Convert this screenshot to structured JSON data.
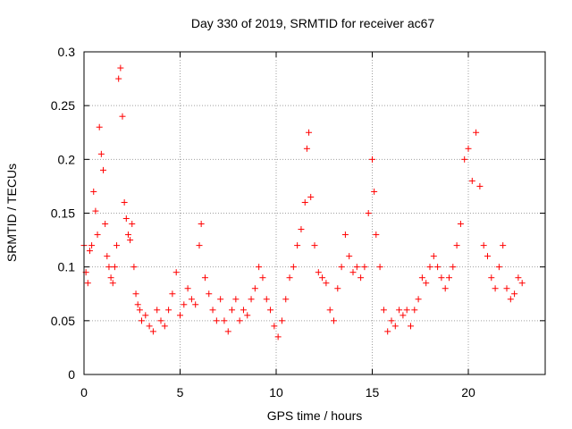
{
  "chart_data": {
    "type": "scatter",
    "title": "Day 330 of 2019, SRMTID for receiver ac67",
    "xlabel": "GPS time / hours",
    "ylabel": "SRMTID / TECUs",
    "xlim": [
      0,
      24
    ],
    "ylim": [
      0,
      0.3
    ],
    "xticks": [
      0,
      5,
      10,
      15,
      20
    ],
    "yticks": [
      0,
      0.05,
      0.1,
      0.15,
      0.2,
      0.25,
      0.3
    ],
    "xtick_labels": [
      "0",
      "5",
      "10",
      "15",
      "20"
    ],
    "ytick_labels": [
      "0",
      "0.05",
      "0.1",
      "0.15",
      "0.2",
      "0.25",
      "0.3"
    ],
    "grid": true,
    "marker": "+",
    "color": "#ff0000",
    "series": [
      {
        "name": "SRMTID",
        "points": [
          [
            0.0,
            0.12
          ],
          [
            0.1,
            0.095
          ],
          [
            0.2,
            0.085
          ],
          [
            0.3,
            0.115
          ],
          [
            0.4,
            0.12
          ],
          [
            0.5,
            0.17
          ],
          [
            0.6,
            0.152
          ],
          [
            0.7,
            0.13
          ],
          [
            0.8,
            0.23
          ],
          [
            0.9,
            0.205
          ],
          [
            1.0,
            0.19
          ],
          [
            1.1,
            0.14
          ],
          [
            1.2,
            0.11
          ],
          [
            1.3,
            0.1
          ],
          [
            1.4,
            0.09
          ],
          [
            1.5,
            0.085
          ],
          [
            1.6,
            0.1
          ],
          [
            1.7,
            0.12
          ],
          [
            1.8,
            0.275
          ],
          [
            1.9,
            0.285
          ],
          [
            2.0,
            0.24
          ],
          [
            2.1,
            0.16
          ],
          [
            2.2,
            0.145
          ],
          [
            2.3,
            0.13
          ],
          [
            2.4,
            0.125
          ],
          [
            2.5,
            0.14
          ],
          [
            2.6,
            0.1
          ],
          [
            2.7,
            0.075
          ],
          [
            2.8,
            0.065
          ],
          [
            2.9,
            0.06
          ],
          [
            3.0,
            0.05
          ],
          [
            3.2,
            0.055
          ],
          [
            3.4,
            0.045
          ],
          [
            3.6,
            0.04
          ],
          [
            3.8,
            0.06
          ],
          [
            4.0,
            0.05
          ],
          [
            4.2,
            0.045
          ],
          [
            4.4,
            0.06
          ],
          [
            4.6,
            0.075
          ],
          [
            4.8,
            0.095
          ],
          [
            5.0,
            0.055
          ],
          [
            5.2,
            0.065
          ],
          [
            5.4,
            0.08
          ],
          [
            5.6,
            0.07
          ],
          [
            5.8,
            0.065
          ],
          [
            6.0,
            0.12
          ],
          [
            6.1,
            0.14
          ],
          [
            6.3,
            0.09
          ],
          [
            6.5,
            0.075
          ],
          [
            6.7,
            0.06
          ],
          [
            6.9,
            0.05
          ],
          [
            7.1,
            0.07
          ],
          [
            7.3,
            0.05
          ],
          [
            7.5,
            0.04
          ],
          [
            7.7,
            0.06
          ],
          [
            7.9,
            0.07
          ],
          [
            8.1,
            0.05
          ],
          [
            8.3,
            0.06
          ],
          [
            8.5,
            0.055
          ],
          [
            8.7,
            0.07
          ],
          [
            8.9,
            0.08
          ],
          [
            9.1,
            0.1
          ],
          [
            9.3,
            0.09
          ],
          [
            9.5,
            0.07
          ],
          [
            9.7,
            0.06
          ],
          [
            9.9,
            0.045
          ],
          [
            10.1,
            0.035
          ],
          [
            10.3,
            0.05
          ],
          [
            10.5,
            0.07
          ],
          [
            10.7,
            0.09
          ],
          [
            10.9,
            0.1
          ],
          [
            11.1,
            0.12
          ],
          [
            11.3,
            0.135
          ],
          [
            11.5,
            0.16
          ],
          [
            11.6,
            0.21
          ],
          [
            11.7,
            0.225
          ],
          [
            11.8,
            0.165
          ],
          [
            12.0,
            0.12
          ],
          [
            12.2,
            0.095
          ],
          [
            12.4,
            0.09
          ],
          [
            12.6,
            0.085
          ],
          [
            12.8,
            0.06
          ],
          [
            13.0,
            0.05
          ],
          [
            13.2,
            0.08
          ],
          [
            13.4,
            0.1
          ],
          [
            13.6,
            0.13
          ],
          [
            13.8,
            0.11
          ],
          [
            14.0,
            0.095
          ],
          [
            14.2,
            0.1
          ],
          [
            14.4,
            0.09
          ],
          [
            14.6,
            0.1
          ],
          [
            14.8,
            0.15
          ],
          [
            15.0,
            0.2
          ],
          [
            15.1,
            0.17
          ],
          [
            15.2,
            0.13
          ],
          [
            15.4,
            0.1
          ],
          [
            15.6,
            0.06
          ],
          [
            15.8,
            0.04
          ],
          [
            16.0,
            0.05
          ],
          [
            16.2,
            0.045
          ],
          [
            16.4,
            0.06
          ],
          [
            16.6,
            0.055
          ],
          [
            16.8,
            0.06
          ],
          [
            17.0,
            0.045
          ],
          [
            17.2,
            0.06
          ],
          [
            17.4,
            0.07
          ],
          [
            17.6,
            0.09
          ],
          [
            17.8,
            0.085
          ],
          [
            18.0,
            0.1
          ],
          [
            18.2,
            0.11
          ],
          [
            18.4,
            0.1
          ],
          [
            18.6,
            0.09
          ],
          [
            18.8,
            0.08
          ],
          [
            19.0,
            0.09
          ],
          [
            19.2,
            0.1
          ],
          [
            19.4,
            0.12
          ],
          [
            19.6,
            0.14
          ],
          [
            19.8,
            0.2
          ],
          [
            20.0,
            0.21
          ],
          [
            20.2,
            0.18
          ],
          [
            20.4,
            0.225
          ],
          [
            20.6,
            0.175
          ],
          [
            20.8,
            0.12
          ],
          [
            21.0,
            0.11
          ],
          [
            21.2,
            0.09
          ],
          [
            21.4,
            0.08
          ],
          [
            21.6,
            0.1
          ],
          [
            21.8,
            0.12
          ],
          [
            22.0,
            0.08
          ],
          [
            22.2,
            0.07
          ],
          [
            22.4,
            0.075
          ],
          [
            22.6,
            0.09
          ],
          [
            22.8,
            0.085
          ]
        ]
      }
    ]
  }
}
